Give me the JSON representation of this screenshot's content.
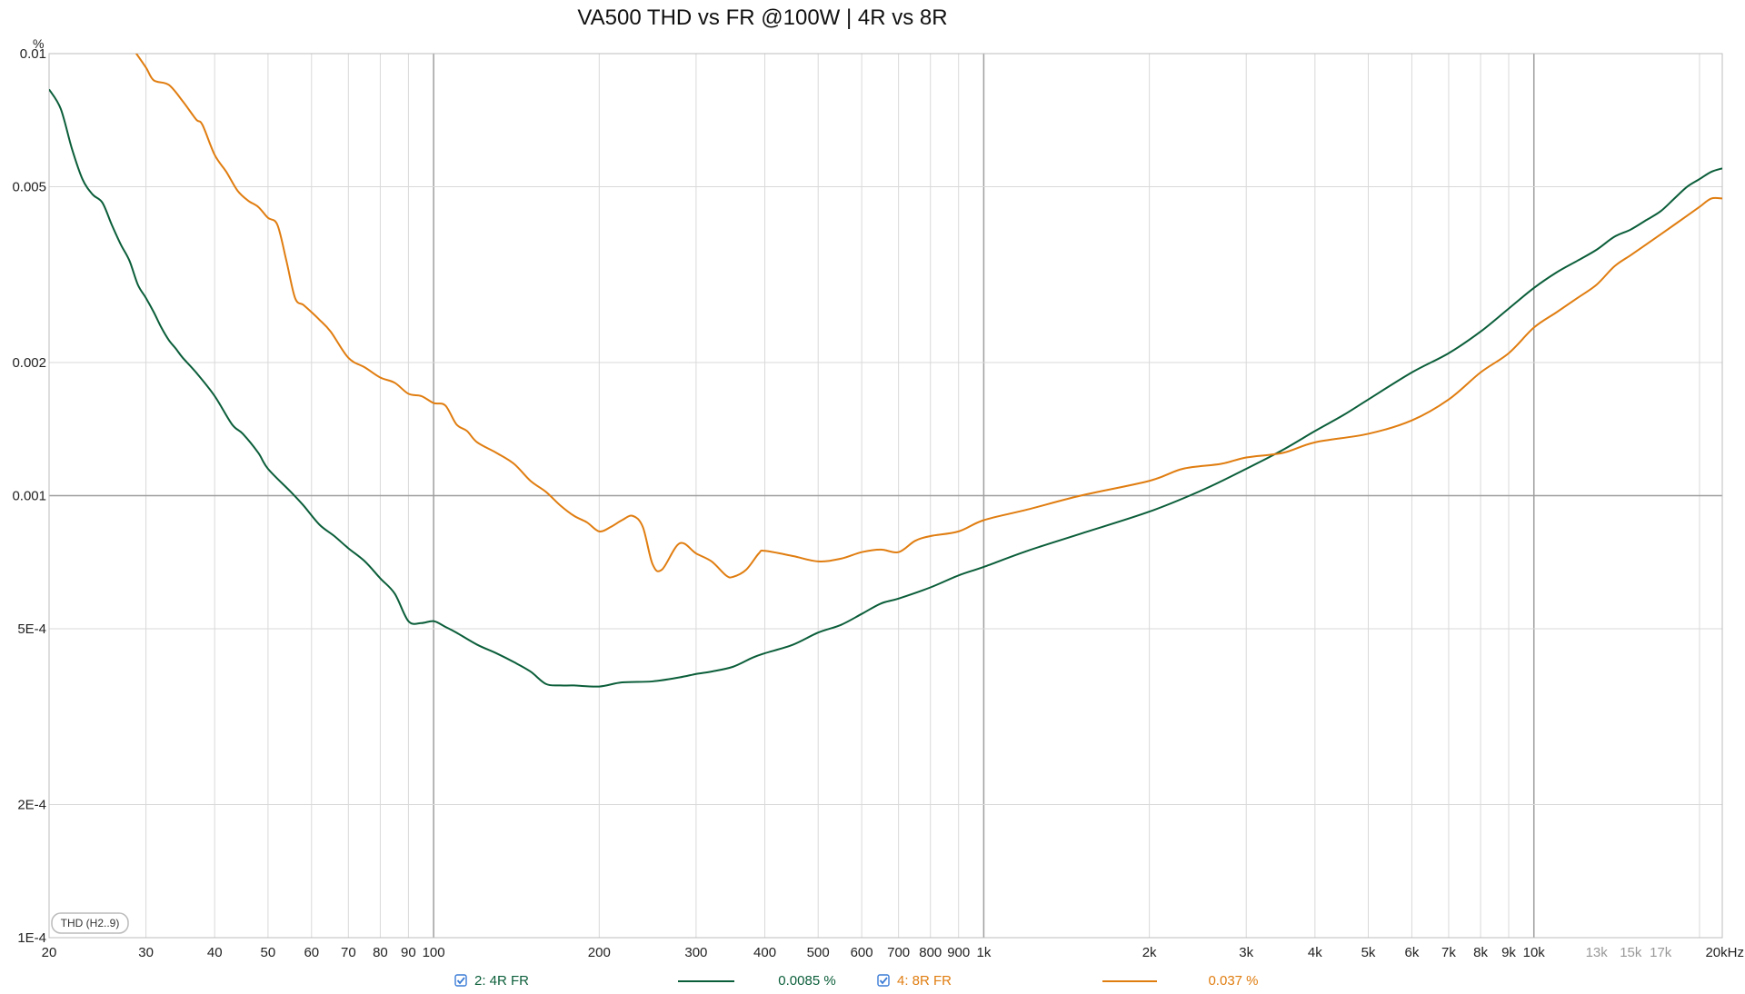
{
  "chart_data": {
    "type": "line",
    "title": "VA500 THD vs FR @100W | 4R vs 8R",
    "y_unit": "%",
    "x_scale": "log",
    "y_scale": "log",
    "xlim": [
      20,
      22000
    ],
    "ylim": [
      0.0001,
      0.01
    ],
    "grid": true,
    "badge_label": "THD (H2..9)",
    "x_ticks": [
      {
        "value": 20,
        "label": "20"
      },
      {
        "value": 30,
        "label": "30"
      },
      {
        "value": 40,
        "label": "40"
      },
      {
        "value": 50,
        "label": "50"
      },
      {
        "value": 60,
        "label": "60"
      },
      {
        "value": 70,
        "label": "70"
      },
      {
        "value": 80,
        "label": "80"
      },
      {
        "value": 90,
        "label": "90"
      },
      {
        "value": 100,
        "label": "100"
      },
      {
        "value": 200,
        "label": "200"
      },
      {
        "value": 300,
        "label": "300"
      },
      {
        "value": 400,
        "label": "400"
      },
      {
        "value": 500,
        "label": "500"
      },
      {
        "value": 600,
        "label": "600"
      },
      {
        "value": 700,
        "label": "700"
      },
      {
        "value": 800,
        "label": "800"
      },
      {
        "value": 900,
        "label": "900"
      },
      {
        "value": 1000,
        "label": "1k"
      },
      {
        "value": 2000,
        "label": "2k"
      },
      {
        "value": 3000,
        "label": "3k"
      },
      {
        "value": 4000,
        "label": "4k"
      },
      {
        "value": 5000,
        "label": "5k"
      },
      {
        "value": 6000,
        "label": "6k"
      },
      {
        "value": 7000,
        "label": "7k"
      },
      {
        "value": 8000,
        "label": "8k"
      },
      {
        "value": 9000,
        "label": "9k"
      },
      {
        "value": 10000,
        "label": "10k"
      },
      {
        "value": 13000,
        "label": "13k",
        "minor": true
      },
      {
        "value": 15000,
        "label": "15k",
        "minor": true
      },
      {
        "value": 17000,
        "label": "17k",
        "minor": true
      },
      {
        "value": 20000,
        "label": "20kHz"
      }
    ],
    "y_ticks": [
      {
        "value": 0.01,
        "label": "0.01"
      },
      {
        "value": 0.005,
        "label": "0.005"
      },
      {
        "value": 0.002,
        "label": "0.002"
      },
      {
        "value": 0.001,
        "label": "0.001"
      },
      {
        "value": 0.0005,
        "label": "5E-4"
      },
      {
        "value": 0.0002,
        "label": "2E-4"
      },
      {
        "value": 0.0001,
        "label": "1E-4"
      }
    ],
    "series": [
      {
        "name": "2: 4R FR",
        "color": "#0b5e3a",
        "readout": "0.0085 %",
        "checked": true,
        "points": [
          [
            20,
            0.0083
          ],
          [
            21,
            0.0075
          ],
          [
            22,
            0.0061
          ],
          [
            23,
            0.0052
          ],
          [
            24,
            0.0048
          ],
          [
            25,
            0.0046
          ],
          [
            26,
            0.0041
          ],
          [
            27,
            0.0037
          ],
          [
            28,
            0.0034
          ],
          [
            29,
            0.003
          ],
          [
            30,
            0.0028
          ],
          [
            31,
            0.0026
          ],
          [
            32,
            0.0024
          ],
          [
            33,
            0.00225
          ],
          [
            34,
            0.00215
          ],
          [
            35,
            0.00205
          ],
          [
            37,
            0.0019
          ],
          [
            40,
            0.00168
          ],
          [
            43,
            0.00145
          ],
          [
            45,
            0.00138
          ],
          [
            48,
            0.00125
          ],
          [
            50,
            0.00115
          ],
          [
            55,
            0.00102
          ],
          [
            58,
            0.00095
          ],
          [
            62,
            0.00086
          ],
          [
            66,
            0.00081
          ],
          [
            70,
            0.00076
          ],
          [
            75,
            0.00071
          ],
          [
            80,
            0.00065
          ],
          [
            85,
            0.0006
          ],
          [
            90,
            0.00052
          ],
          [
            95,
            0.000515
          ],
          [
            100,
            0.00052
          ],
          [
            105,
            0.000505
          ],
          [
            110,
            0.00049
          ],
          [
            120,
            0.00046
          ],
          [
            130,
            0.00044
          ],
          [
            140,
            0.00042
          ],
          [
            150,
            0.0004
          ],
          [
            160,
            0.000375
          ],
          [
            170,
            0.000372
          ],
          [
            180,
            0.000372
          ],
          [
            200,
            0.00037
          ],
          [
            220,
            0.000378
          ],
          [
            250,
            0.00038
          ],
          [
            280,
            0.000388
          ],
          [
            300,
            0.000395
          ],
          [
            320,
            0.0004
          ],
          [
            350,
            0.00041
          ],
          [
            380,
            0.00043
          ],
          [
            400,
            0.00044
          ],
          [
            450,
            0.00046
          ],
          [
            500,
            0.00049
          ],
          [
            550,
            0.00051
          ],
          [
            600,
            0.00054
          ],
          [
            650,
            0.00057
          ],
          [
            700,
            0.000585
          ],
          [
            800,
            0.00062
          ],
          [
            900,
            0.00066
          ],
          [
            1000,
            0.00069
          ],
          [
            1200,
            0.00075
          ],
          [
            1500,
            0.00082
          ],
          [
            2000,
            0.00092
          ],
          [
            2500,
            0.00103
          ],
          [
            3000,
            0.00115
          ],
          [
            3500,
            0.00127
          ],
          [
            4000,
            0.0014
          ],
          [
            4500,
            0.00152
          ],
          [
            5000,
            0.00165
          ],
          [
            6000,
            0.0019
          ],
          [
            7000,
            0.0021
          ],
          [
            8000,
            0.00235
          ],
          [
            9000,
            0.00265
          ],
          [
            10000,
            0.00295
          ],
          [
            11000,
            0.0032
          ],
          [
            12000,
            0.0034
          ],
          [
            13000,
            0.0036
          ],
          [
            14000,
            0.00385
          ],
          [
            15000,
            0.004
          ],
          [
            16000,
            0.0042
          ],
          [
            17000,
            0.0044
          ],
          [
            18000,
            0.0047
          ],
          [
            19000,
            0.005
          ],
          [
            20000,
            0.0052
          ],
          [
            21000,
            0.0054
          ],
          [
            22000,
            0.0055
          ]
        ]
      },
      {
        "name": "4: 8R FR",
        "color": "#e07d10",
        "readout": "0.037 %",
        "checked": true,
        "points": [
          [
            28.5,
            0.0102
          ],
          [
            30,
            0.0093
          ],
          [
            31,
            0.0087
          ],
          [
            33,
            0.0085
          ],
          [
            35,
            0.0078
          ],
          [
            37,
            0.0071
          ],
          [
            38,
            0.0069
          ],
          [
            40,
            0.0059
          ],
          [
            42,
            0.0054
          ],
          [
            44,
            0.0049
          ],
          [
            46,
            0.00465
          ],
          [
            48,
            0.0045
          ],
          [
            50,
            0.00425
          ],
          [
            52,
            0.0041
          ],
          [
            54,
            0.0034
          ],
          [
            56,
            0.0028
          ],
          [
            58,
            0.0027
          ],
          [
            60,
            0.0026
          ],
          [
            62,
            0.0025
          ],
          [
            65,
            0.00235
          ],
          [
            70,
            0.00205
          ],
          [
            75,
            0.00195
          ],
          [
            80,
            0.00185
          ],
          [
            85,
            0.0018
          ],
          [
            90,
            0.0017
          ],
          [
            95,
            0.00168
          ],
          [
            100,
            0.00162
          ],
          [
            105,
            0.0016
          ],
          [
            110,
            0.00145
          ],
          [
            115,
            0.0014
          ],
          [
            120,
            0.00132
          ],
          [
            130,
            0.00125
          ],
          [
            140,
            0.00118
          ],
          [
            150,
            0.00108
          ],
          [
            160,
            0.00102
          ],
          [
            170,
            0.00095
          ],
          [
            180,
            0.0009
          ],
          [
            190,
            0.00087
          ],
          [
            200,
            0.00083
          ],
          [
            210,
            0.00085
          ],
          [
            220,
            0.00088
          ],
          [
            230,
            0.0009
          ],
          [
            240,
            0.00085
          ],
          [
            250,
            0.0007
          ],
          [
            260,
            0.00068
          ],
          [
            280,
            0.00078
          ],
          [
            300,
            0.00074
          ],
          [
            320,
            0.00071
          ],
          [
            340,
            0.00066
          ],
          [
            350,
            0.000655
          ],
          [
            370,
            0.00068
          ],
          [
            390,
            0.00074
          ],
          [
            400,
            0.00075
          ],
          [
            450,
            0.00073
          ],
          [
            500,
            0.00071
          ],
          [
            550,
            0.00072
          ],
          [
            600,
            0.000745
          ],
          [
            650,
            0.000755
          ],
          [
            700,
            0.000745
          ],
          [
            750,
            0.00079
          ],
          [
            800,
            0.00081
          ],
          [
            900,
            0.00083
          ],
          [
            1000,
            0.00088
          ],
          [
            1200,
            0.00093
          ],
          [
            1500,
            0.001
          ],
          [
            2000,
            0.00108
          ],
          [
            2300,
            0.00115
          ],
          [
            2700,
            0.00118
          ],
          [
            3000,
            0.00122
          ],
          [
            3500,
            0.00125
          ],
          [
            4000,
            0.00132
          ],
          [
            5000,
            0.00138
          ],
          [
            6000,
            0.00148
          ],
          [
            7000,
            0.00165
          ],
          [
            8000,
            0.0019
          ],
          [
            9000,
            0.0021
          ],
          [
            10000,
            0.0024
          ],
          [
            11000,
            0.0026
          ],
          [
            12000,
            0.0028
          ],
          [
            13000,
            0.003
          ],
          [
            14000,
            0.0033
          ],
          [
            15000,
            0.0035
          ],
          [
            16000,
            0.0037
          ],
          [
            17000,
            0.0039
          ],
          [
            18000,
            0.0041
          ],
          [
            19000,
            0.0043
          ],
          [
            20000,
            0.0045
          ],
          [
            21000,
            0.0047
          ],
          [
            22000,
            0.0047
          ]
        ]
      }
    ]
  }
}
